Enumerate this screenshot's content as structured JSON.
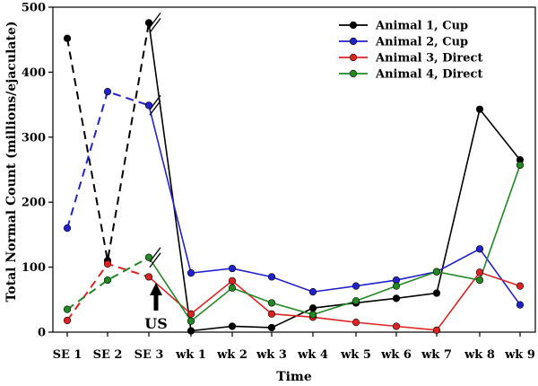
{
  "chart_data": {
    "type": "line",
    "title": "",
    "xlabel": "Time",
    "ylabel": "Total Normal Count (millions/ejaculate)",
    "ylim": [
      0,
      500
    ],
    "yticks": [
      0,
      100,
      200,
      300,
      400,
      500
    ],
    "categories": [
      "SE 1",
      "SE 2",
      "SE 3",
      "wk 1",
      "wk 2",
      "wk 3",
      "wk 4",
      "wk 5",
      "wk 6",
      "wk 7",
      "wk 8",
      "wk 9"
    ],
    "dashed_through_index": 2,
    "legend_position": "top-right",
    "series": [
      {
        "name": "Animal 1, Cup",
        "color": "#000000",
        "values": [
          452,
          110,
          476,
          2,
          9,
          7,
          37,
          45,
          52,
          60,
          343,
          265
        ]
      },
      {
        "name": "Animal 2, Cup",
        "color": "#2222cc",
        "values": [
          160,
          370,
          349,
          91,
          98,
          85,
          62,
          71,
          80,
          93,
          128,
          42
        ]
      },
      {
        "name": "Animal 3, Direct",
        "color": "#dd2222",
        "values": [
          18,
          105,
          85,
          28,
          79,
          28,
          23,
          15,
          9,
          3,
          92,
          71
        ]
      },
      {
        "name": "Animal 4, Direct",
        "color": "#228822",
        "values": [
          35,
          80,
          115,
          17,
          68,
          45,
          27,
          48,
          71,
          93,
          80,
          257
        ]
      }
    ],
    "annotations": [
      {
        "text": "US",
        "category": "SE 3"
      }
    ]
  }
}
